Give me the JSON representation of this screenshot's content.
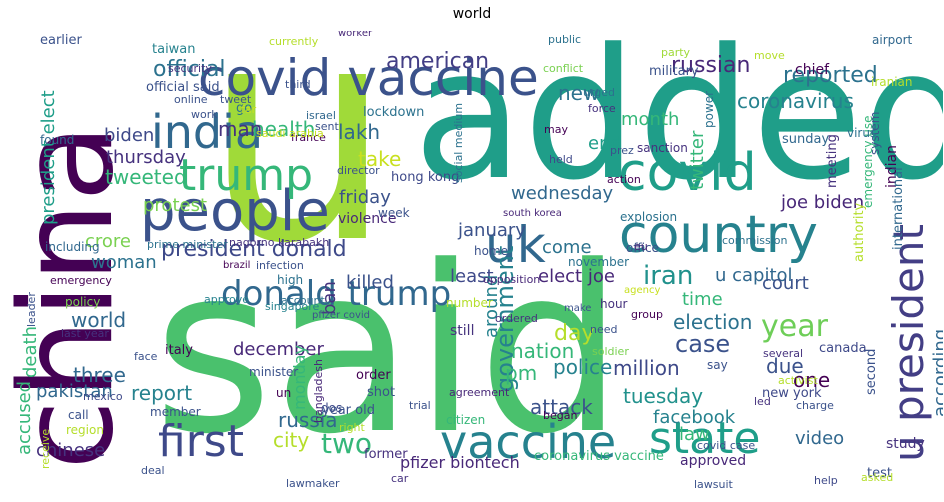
{
  "chart_data": {
    "type": "wordcloud",
    "title": "world",
    "palette": [
      "#440154",
      "#46327e",
      "#365c8d",
      "#277f8e",
      "#1fa187",
      "#4ac16d",
      "#a0da39",
      "#fde725"
    ],
    "words": [
      {
        "text": "said",
        "color": "#4ac16d"
      },
      {
        "text": "u",
        "color": "#a0da39"
      },
      {
        "text": "added",
        "color": "#1f9e89"
      },
      {
        "text": "china",
        "color": "#440154"
      },
      {
        "text": "covid vaccine",
        "color": "#3b528b"
      },
      {
        "text": "people",
        "color": "#3b528b"
      },
      {
        "text": "india",
        "color": "#31688e"
      },
      {
        "text": "trump",
        "color": "#35b779"
      },
      {
        "text": "covid",
        "color": "#1f9e89"
      },
      {
        "text": "country",
        "color": "#26828e"
      },
      {
        "text": "uk",
        "color": "#31688e"
      },
      {
        "text": "first",
        "color": "#3e4989"
      },
      {
        "text": "vaccine",
        "color": "#26828e"
      },
      {
        "text": "state",
        "color": "#1f9e89"
      },
      {
        "text": "u president",
        "color": "#433e85"
      },
      {
        "text": "donald trump",
        "color": "#31688e"
      },
      {
        "text": "government",
        "color": "#26828e"
      },
      {
        "text": "year",
        "color": "#6ece58"
      },
      {
        "text": "president donald",
        "color": "#3e4989"
      },
      {
        "text": "iran",
        "color": "#21918c"
      },
      {
        "text": "president elect",
        "color": "#1f9e89"
      },
      {
        "text": "russian",
        "color": "#482878"
      },
      {
        "text": "american",
        "color": "#433e85"
      },
      {
        "text": "official",
        "color": "#2c728e"
      },
      {
        "text": "reported",
        "color": "#2c728e"
      },
      {
        "text": "coronavirus",
        "color": "#26828e"
      },
      {
        "text": "health",
        "color": "#35b779"
      },
      {
        "text": "man",
        "color": "#46337e"
      },
      {
        "text": "lakh",
        "color": "#31688e"
      },
      {
        "text": "take",
        "color": "#c8e020"
      },
      {
        "text": "new",
        "color": "#2c728e"
      },
      {
        "text": "month",
        "color": "#35b779"
      },
      {
        "text": "end",
        "color": "#1f9e89"
      },
      {
        "text": "thursday",
        "color": "#46327e"
      },
      {
        "text": "tweeted",
        "color": "#35b779"
      },
      {
        "text": "biden",
        "color": "#3e4989"
      },
      {
        "text": "protest",
        "color": "#7ad151"
      },
      {
        "text": "friday",
        "color": "#3b528b"
      },
      {
        "text": "wednesday",
        "color": "#31688e"
      },
      {
        "text": "twitter",
        "color": "#35b779"
      },
      {
        "text": "joe biden",
        "color": "#482878"
      },
      {
        "text": "crore",
        "color": "#7ad151"
      },
      {
        "text": "woman",
        "color": "#2c728e"
      },
      {
        "text": "january",
        "color": "#3b528b"
      },
      {
        "text": "come",
        "color": "#2c728e"
      },
      {
        "text": "elect joe",
        "color": "#482878"
      },
      {
        "text": "u capitol",
        "color": "#31688e"
      },
      {
        "text": "killed",
        "color": "#3b528b"
      },
      {
        "text": "least",
        "color": "#3e4989"
      },
      {
        "text": "world",
        "color": "#31688e"
      },
      {
        "text": "ban",
        "color": "#46337e"
      },
      {
        "text": "time",
        "color": "#35b779"
      },
      {
        "text": "court",
        "color": "#3b528b"
      },
      {
        "text": "around",
        "color": "#26828e"
      },
      {
        "text": "election",
        "color": "#2c728e"
      },
      {
        "text": "day",
        "color": "#b5de2b"
      },
      {
        "text": "case",
        "color": "#3b528b"
      },
      {
        "text": "due",
        "color": "#3b528b"
      },
      {
        "text": "death",
        "color": "#35b779"
      },
      {
        "text": "december",
        "color": "#482878"
      },
      {
        "text": "police",
        "color": "#26828e"
      },
      {
        "text": "nation",
        "color": "#35b779"
      },
      {
        "text": "million",
        "color": "#3e4989"
      },
      {
        "text": "one",
        "color": "#440154"
      },
      {
        "text": "pakistan",
        "color": "#31688e"
      },
      {
        "text": "report",
        "color": "#26828e"
      },
      {
        "text": "three",
        "color": "#31688e"
      },
      {
        "text": "tuesday",
        "color": "#21918c"
      },
      {
        "text": "pm",
        "color": "#35b779"
      },
      {
        "text": "attack",
        "color": "#3b528b"
      },
      {
        "text": "facebook",
        "color": "#26828e"
      },
      {
        "text": "law",
        "color": "#35b779"
      },
      {
        "text": "accused",
        "color": "#35b779"
      },
      {
        "text": "chinese",
        "color": "#46327e"
      },
      {
        "text": "russia",
        "color": "#31688e"
      },
      {
        "text": "city",
        "color": "#b5de2b"
      },
      {
        "text": "two",
        "color": "#35b779"
      },
      {
        "text": "video",
        "color": "#31688e"
      },
      {
        "text": "monday",
        "color": "#35b779"
      },
      {
        "text": "according",
        "color": "#31688e"
      },
      {
        "text": "pfizer biontech",
        "color": "#482878"
      },
      {
        "text": "coronavirus vaccine",
        "color": "#35b779"
      },
      {
        "text": "approved",
        "color": "#482878"
      },
      {
        "text": "new york",
        "color": "#3e4989"
      },
      {
        "text": "study",
        "color": "#46327e"
      },
      {
        "text": "test",
        "color": "#3b528b"
      },
      {
        "text": "canada",
        "color": "#3e4989"
      },
      {
        "text": "sunday",
        "color": "#31688e"
      },
      {
        "text": "chief",
        "color": "#440154"
      },
      {
        "text": "meeting",
        "color": "#46327e"
      },
      {
        "text": "indian",
        "color": "#440154"
      },
      {
        "text": "system",
        "color": "#3b528b"
      },
      {
        "text": "international",
        "color": "#31688e"
      },
      {
        "text": "authority",
        "color": "#b5de2b"
      },
      {
        "text": "second",
        "color": "#3b528b"
      },
      {
        "text": "emergency use",
        "color": "#35b779"
      },
      {
        "text": "iranian",
        "color": "#b5de2b"
      },
      {
        "text": "airport",
        "color": "#31688e"
      },
      {
        "text": "sanction",
        "color": "#46327e"
      },
      {
        "text": "military",
        "color": "#3b528b"
      },
      {
        "text": "party",
        "color": "#a0da39"
      },
      {
        "text": "move",
        "color": "#b5de2b"
      },
      {
        "text": "currently",
        "color": "#b5de2b"
      },
      {
        "text": "worker",
        "color": "#482878"
      },
      {
        "text": "public",
        "color": "#2c728e"
      },
      {
        "text": "earlier",
        "color": "#3b528b"
      },
      {
        "text": "taiwan",
        "color": "#26828e"
      },
      {
        "text": "security",
        "color": "#46327e"
      },
      {
        "text": "official said",
        "color": "#3b528b"
      },
      {
        "text": "online",
        "color": "#3b528b"
      },
      {
        "text": "tweet",
        "color": "#3b528b"
      },
      {
        "text": "israel",
        "color": "#31688e"
      },
      {
        "text": "third",
        "color": "#3b528b"
      },
      {
        "text": "go",
        "color": "#2c728e"
      },
      {
        "text": "work",
        "color": "#3b528b"
      },
      {
        "text": "france",
        "color": "#440154"
      },
      {
        "text": "lockdown",
        "color": "#2c728e"
      },
      {
        "text": "found",
        "color": "#31688e"
      },
      {
        "text": "sent",
        "color": "#3b528b"
      },
      {
        "text": "far",
        "color": "#c8e020"
      },
      {
        "text": "saudi arabia",
        "color": "#c8e020"
      },
      {
        "text": "director",
        "color": "#3b528b"
      },
      {
        "text": "hong kong",
        "color": "#3e4989"
      },
      {
        "text": "social medium",
        "color": "#2c728e"
      },
      {
        "text": "conflict",
        "color": "#7ad151"
      },
      {
        "text": "urged",
        "color": "#2c728e"
      },
      {
        "text": "power",
        "color": "#2c728e"
      },
      {
        "text": "force",
        "color": "#46327e"
      },
      {
        "text": "may",
        "color": "#440154"
      },
      {
        "text": "held",
        "color": "#3e4989"
      },
      {
        "text": "virus",
        "color": "#2c728e"
      },
      {
        "text": "action",
        "color": "#440154"
      },
      {
        "text": "prez",
        "color": "#3b528b"
      },
      {
        "text": "south korea",
        "color": "#482878"
      },
      {
        "text": "explosion",
        "color": "#2c728e"
      },
      {
        "text": "office",
        "color": "#3b528b"
      },
      {
        "text": "commission",
        "color": "#2c728e"
      },
      {
        "text": "violence",
        "color": "#482878"
      },
      {
        "text": "week",
        "color": "#3b528b"
      },
      {
        "text": "home",
        "color": "#3b528b"
      },
      {
        "text": "november",
        "color": "#2c728e"
      },
      {
        "text": "eu",
        "color": "#482878"
      },
      {
        "text": "including",
        "color": "#31688e"
      },
      {
        "text": "prime minister",
        "color": "#2c728e"
      },
      {
        "text": "nagorno karabakh",
        "color": "#46327e"
      },
      {
        "text": "opposition",
        "color": "#482878"
      },
      {
        "text": "policy",
        "color": "#7ad151"
      },
      {
        "text": "brazil",
        "color": "#440154"
      },
      {
        "text": "infection",
        "color": "#3b528b"
      },
      {
        "text": "high",
        "color": "#2c728e"
      },
      {
        "text": "emergency",
        "color": "#440154"
      },
      {
        "text": "account",
        "color": "#2c728e"
      },
      {
        "text": "singapore",
        "color": "#26828e"
      },
      {
        "text": "approve",
        "color": "#26828e"
      },
      {
        "text": "leader",
        "color": "#3b528b"
      },
      {
        "text": "pfizer covid",
        "color": "#3b528b"
      },
      {
        "text": "number",
        "color": "#b5de2b"
      },
      {
        "text": "ordered",
        "color": "#46327e"
      },
      {
        "text": "make",
        "color": "#3b528b"
      },
      {
        "text": "agency",
        "color": "#c8e020"
      },
      {
        "text": "group",
        "color": "#440154"
      },
      {
        "text": "hour",
        "color": "#46327e"
      },
      {
        "text": "need",
        "color": "#3b528b"
      },
      {
        "text": "still",
        "color": "#46327e"
      },
      {
        "text": "soldier",
        "color": "#7ad151"
      },
      {
        "text": "several",
        "color": "#46327e"
      },
      {
        "text": "activist",
        "color": "#b5de2b"
      },
      {
        "text": "last year",
        "color": "#46327e"
      },
      {
        "text": "face",
        "color": "#3b528b"
      },
      {
        "text": "italy",
        "color": "#440154"
      },
      {
        "text": "minister",
        "color": "#3b528b"
      },
      {
        "text": "un",
        "color": "#440154"
      },
      {
        "text": "dos",
        "color": "#3e4989"
      },
      {
        "text": "order",
        "color": "#440154"
      },
      {
        "text": "shot",
        "color": "#3b528b"
      },
      {
        "text": "year old",
        "color": "#3b528b"
      },
      {
        "text": "say",
        "color": "#3b528b"
      },
      {
        "text": "led",
        "color": "#46327e"
      },
      {
        "text": "charge",
        "color": "#3b528b"
      },
      {
        "text": "mexico",
        "color": "#3e4989"
      },
      {
        "text": "call",
        "color": "#3b528b"
      },
      {
        "text": "member",
        "color": "#3b528b"
      },
      {
        "text": "right",
        "color": "#b5de2b"
      },
      {
        "text": "bangladesh",
        "color": "#482878"
      },
      {
        "text": "trial",
        "color": "#3b528b"
      },
      {
        "text": "agreement",
        "color": "#482878"
      },
      {
        "text": "citizen",
        "color": "#35b779"
      },
      {
        "text": "began",
        "color": "#440154"
      },
      {
        "text": "receive",
        "color": "#b5de2b"
      },
      {
        "text": "region",
        "color": "#b5de2b"
      },
      {
        "text": "deal",
        "color": "#3b528b"
      },
      {
        "text": "former",
        "color": "#46327e"
      },
      {
        "text": "car",
        "color": "#46327e"
      },
      {
        "text": "lawmaker",
        "color": "#3b528b"
      },
      {
        "text": "covid case",
        "color": "#3b528b"
      },
      {
        "text": "lawsuit",
        "color": "#3b528b"
      },
      {
        "text": "help",
        "color": "#3e4989"
      },
      {
        "text": "asked",
        "color": "#b5de2b"
      }
    ]
  }
}
